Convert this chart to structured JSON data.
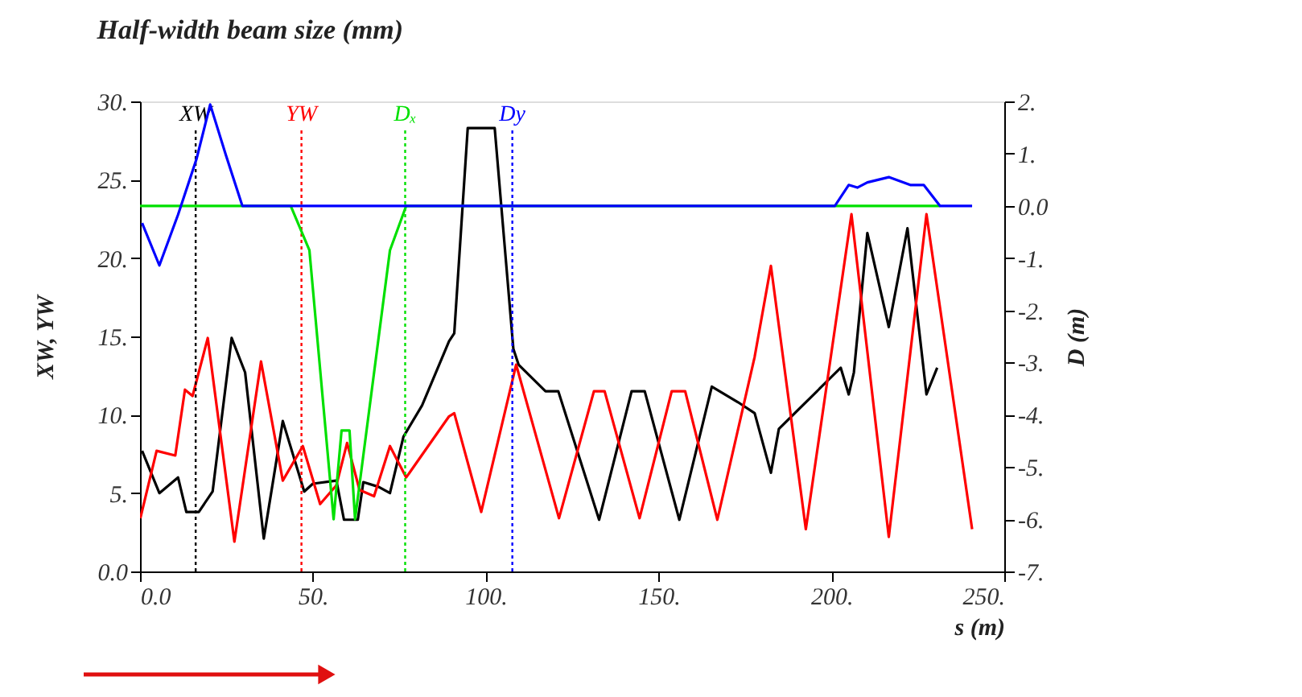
{
  "chart_data": {
    "type": "line",
    "title": "Half-width beam size (mm)",
    "xlabel": "s (m)",
    "ylabel": "XW, YW",
    "y2label": "D (m)",
    "xlim": [
      0,
      250
    ],
    "xticks": [
      {
        "value": 0,
        "label": "0.0"
      },
      {
        "value": 50,
        "label": "50."
      },
      {
        "value": 100,
        "label": "100."
      },
      {
        "value": 150,
        "label": "150."
      },
      {
        "value": 200,
        "label": "200."
      },
      {
        "value": 250,
        "label": "250."
      }
    ],
    "ylim": [
      0,
      30
    ],
    "yticks": [
      {
        "value": 0,
        "label": "0.0"
      },
      {
        "value": 5,
        "label": "5."
      },
      {
        "value": 10,
        "label": "10."
      },
      {
        "value": 15,
        "label": "15."
      },
      {
        "value": 20,
        "label": "20."
      },
      {
        "value": 25,
        "label": "25."
      },
      {
        "value": 30,
        "label": "30."
      }
    ],
    "y2lim": [
      -7,
      2
    ],
    "y2ticks": [
      {
        "value": 2,
        "label": "2."
      },
      {
        "value": 1,
        "label": "1."
      },
      {
        "value": 0,
        "label": "0.0"
      },
      {
        "value": -1,
        "label": "-1."
      },
      {
        "value": -2,
        "label": "-2."
      },
      {
        "value": -3,
        "label": "-3."
      },
      {
        "value": -4,
        "label": "-4."
      },
      {
        "value": -5,
        "label": "-5."
      },
      {
        "value": -6,
        "label": "-6."
      },
      {
        "value": -7,
        "label": "-7."
      }
    ],
    "grid": false,
    "legend": false,
    "marker": "none",
    "line_style": "solid",
    "series": [
      {
        "color": "#000000",
        "x": [
          0.6,
          5.6,
          11,
          13.4,
          17,
          21,
          26.5,
          30.4,
          35.8,
          41.3,
          47.5,
          50,
          56.8,
          59,
          63,
          64.6,
          69,
          72.3,
          76.2,
          81.6,
          89.4,
          90.9,
          94.8,
          102.6,
          108,
          109.5,
          117.3,
          121,
          132.8,
          142.2,
          146,
          156,
          165.4,
          173,
          177.8,
          182.5,
          184.8,
          202.7,
          205,
          206.5,
          210.4,
          216.6,
          222,
          227.5,
          230.6
        ],
        "values": [
          7.7,
          5.0,
          6.0,
          3.8,
          3.8,
          5.1,
          14.9,
          12.7,
          2.1,
          9.6,
          5.1,
          5.6,
          5.8,
          3.3,
          3.3,
          5.7,
          5.4,
          5.0,
          8.6,
          10.6,
          14.7,
          15.2,
          28.3,
          28.3,
          14.2,
          13.2,
          11.5,
          11.5,
          3.3,
          11.5,
          11.5,
          3.3,
          11.8,
          10.8,
          10.1,
          6.3,
          9.1,
          13.0,
          11.3,
          12.7,
          21.6,
          15.6,
          21.9,
          11.3,
          13.0
        ]
      },
      {
        "color": "#ff0000",
        "x": [
          0.1,
          4.8,
          10.2,
          13,
          15.2,
          19.6,
          27.3,
          35,
          41.3,
          47.1,
          52.1,
          56.8,
          59.9,
          63.5,
          67.7,
          72.3,
          77,
          89.4,
          90.9,
          98.7,
          108.8,
          121.2,
          131.3,
          134.4,
          144.5,
          153.8,
          157.7,
          167,
          177.8,
          182.5,
          192.6,
          205.8,
          216.6,
          227.5,
          240.7
        ],
        "values": [
          3.4,
          7.7,
          7.4,
          11.6,
          11.2,
          14.9,
          1.9,
          13.4,
          5.8,
          8.0,
          4.3,
          5.5,
          8.2,
          5.2,
          4.8,
          8.0,
          6.0,
          9.9,
          10.1,
          3.8,
          13.2,
          3.4,
          11.5,
          11.5,
          3.4,
          11.5,
          11.5,
          3.3,
          13.7,
          19.5,
          2.7,
          22.8,
          2.2,
          22.8,
          2.7
        ]
      },
      {
        "color": "#00e000",
        "axis": "y2",
        "x": [
          0,
          43.6,
          49,
          56,
          58.3,
          60.6,
          62.2,
          72.3,
          77,
          231.4
        ],
        "values": [
          0,
          0,
          -0.85,
          -6.0,
          -4.3,
          -4.3,
          -6.0,
          -0.85,
          0,
          0
        ]
      },
      {
        "color": "#0000ff",
        "axis": "y2",
        "x": [
          0.6,
          5.6,
          11,
          16.4,
          20.3,
          24.9,
          29.6,
          201,
          205,
          207.5,
          210.4,
          216.6,
          222.8,
          226.7,
          231.4,
          240.7
        ],
        "values": [
          -0.33,
          -1.14,
          -0.17,
          0.91,
          1.94,
          0.96,
          0,
          0,
          0.4,
          0.35,
          0.45,
          0.55,
          0.4,
          0.4,
          0,
          0
        ]
      }
    ],
    "ref_lines": [
      {
        "axis": "x",
        "value": 16.1,
        "label": "XW",
        "color": "#000000",
        "line_style": "dotted"
      },
      {
        "axis": "x",
        "value": 46.7,
        "label": "YW",
        "color": "#ff0000",
        "line_style": "dotted"
      },
      {
        "axis": "x",
        "value": 76.7,
        "label": "Dₓ",
        "color": "#00e000",
        "line_style": "dotted"
      },
      {
        "axis": "x",
        "value": 107.7,
        "label": "Dy",
        "color": "#0000ff",
        "line_style": "dotted"
      }
    ]
  }
}
